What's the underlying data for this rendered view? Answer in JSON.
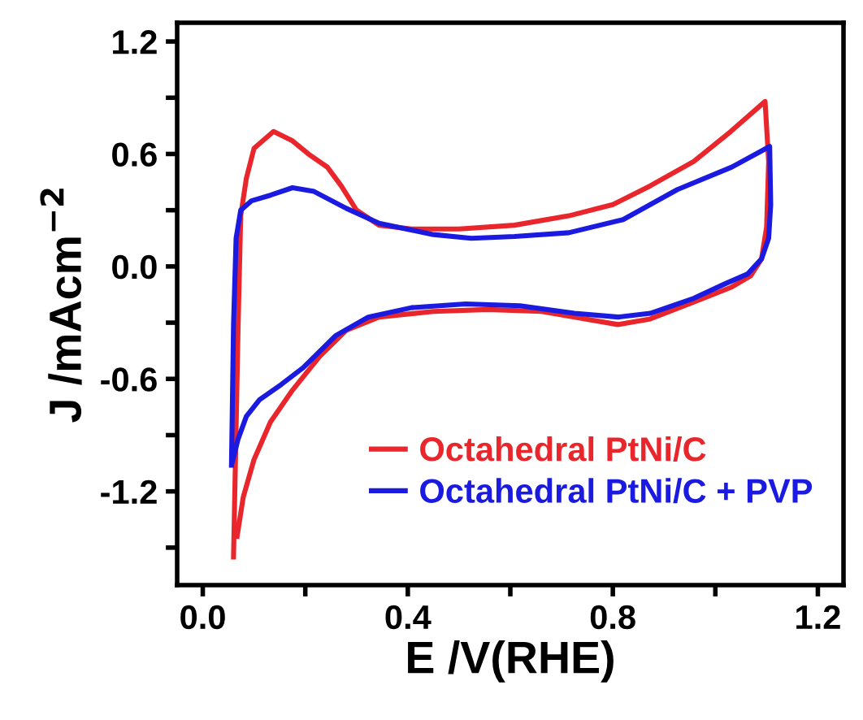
{
  "chart_data": {
    "type": "line",
    "xlabel": "E /V(RHE)",
    "ylabel": "J /mAcm$^{−2}$",
    "xlim": [
      -0.05,
      1.25
    ],
    "ylim": [
      -1.7,
      1.3
    ],
    "xticks": [
      {
        "value": 0,
        "label": "0.0"
      },
      {
        "value": 0.2,
        "label": null
      },
      0.4,
      {
        "value": 0.6,
        "label": null
      },
      0.8,
      {
        "value": 1.0,
        "label": null
      },
      1.2
    ],
    "yticks": [
      {
        "value": -1.5,
        "label": null
      },
      -1.2,
      {
        "value": -0.9,
        "label": null
      },
      -0.6,
      {
        "value": -0.3,
        "label": null
      },
      {
        "value": 0,
        "label": "0.0"
      },
      {
        "value": 0.3,
        "label": null
      },
      0.6,
      {
        "value": 0.9,
        "label": null
      },
      1.2
    ],
    "grid": false,
    "legend": "bottom right",
    "line_style": "solid",
    "series": [
      {
        "name": "Octahedral PtNi/C",
        "color": "#e8262b",
        "x": [
          0.06,
          0.069,
          0.074,
          0.085,
          0.1,
          0.138,
          0.175,
          0.206,
          0.243,
          0.27,
          0.3,
          0.344,
          0.407,
          0.5,
          0.608,
          0.714,
          0.8,
          0.873,
          0.958,
          1.03,
          1.097,
          1.104,
          1.1,
          1.09,
          1.069,
          1.032,
          0.958,
          0.873,
          0.81,
          0.746,
          0.661,
          0.556,
          0.45,
          0.344,
          0.28,
          0.228,
          0.175,
          0.132,
          0.1,
          0.079,
          0.067
        ],
        "values": [
          -1.55,
          -0.31,
          0.27,
          0.47,
          0.63,
          0.72,
          0.67,
          0.6,
          0.53,
          0.43,
          0.3,
          0.22,
          0.2,
          0.2,
          0.22,
          0.27,
          0.33,
          0.43,
          0.56,
          0.72,
          0.88,
          0.56,
          0.21,
          0.04,
          -0.05,
          -0.11,
          -0.19,
          -0.28,
          -0.31,
          -0.28,
          -0.24,
          -0.23,
          -0.24,
          -0.27,
          -0.34,
          -0.48,
          -0.66,
          -0.83,
          -1.03,
          -1.23,
          -1.44
        ]
      },
      {
        "name": "Octahedral PtNi/C + PVP",
        "color": "#1a1ae0",
        "x": [
          0.056,
          0.06,
          0.065,
          0.074,
          0.095,
          0.132,
          0.175,
          0.217,
          0.28,
          0.344,
          0.45,
          0.524,
          0.608,
          0.714,
          0.82,
          0.926,
          1.032,
          1.106,
          1.108,
          1.104,
          1.09,
          1.063,
          1.021,
          0.958,
          0.873,
          0.81,
          0.725,
          0.619,
          0.513,
          0.407,
          0.323,
          0.259,
          0.196,
          0.153,
          0.111,
          0.085,
          0.069,
          0.058
        ],
        "values": [
          -1.06,
          -0.31,
          0.15,
          0.3,
          0.35,
          0.38,
          0.42,
          0.4,
          0.31,
          0.23,
          0.17,
          0.15,
          0.16,
          0.18,
          0.25,
          0.41,
          0.53,
          0.64,
          0.33,
          0.15,
          0.04,
          -0.04,
          -0.09,
          -0.17,
          -0.25,
          -0.27,
          -0.25,
          -0.21,
          -0.2,
          -0.22,
          -0.27,
          -0.37,
          -0.54,
          -0.63,
          -0.71,
          -0.8,
          -0.92,
          -1.04
        ]
      }
    ]
  }
}
